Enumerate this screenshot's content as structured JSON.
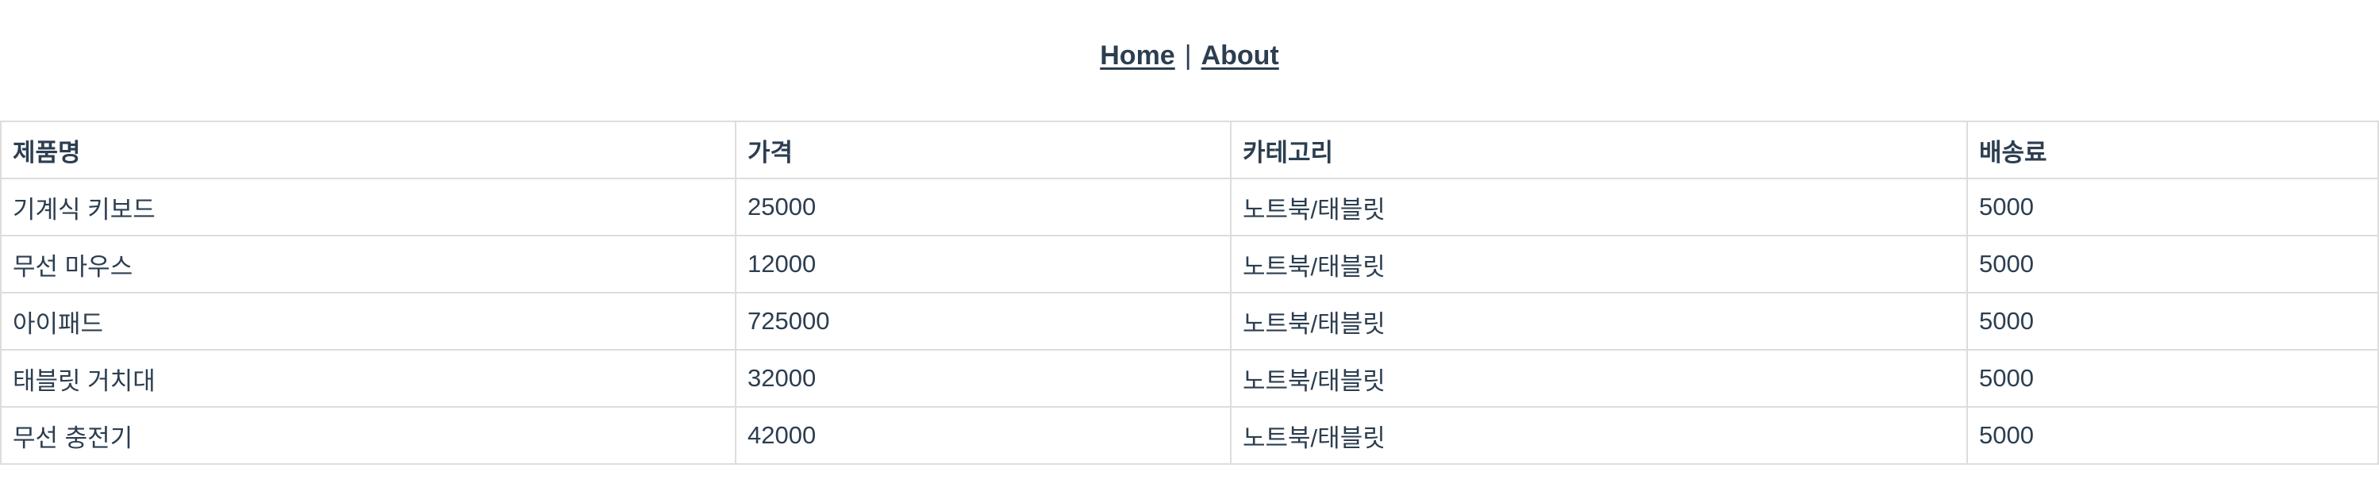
{
  "nav": {
    "home_label": "Home",
    "separator": "|",
    "about_label": "About"
  },
  "table": {
    "headers": [
      "제품명",
      "가격",
      "카테고리",
      "배송료"
    ],
    "rows": [
      [
        "기계식 키보드",
        "25000",
        "노트북/태블릿",
        "5000"
      ],
      [
        "무선 마우스",
        "12000",
        "노트북/태블릿",
        "5000"
      ],
      [
        "아이패드",
        "725000",
        "노트북/태블릿",
        "5000"
      ],
      [
        "태블릿 거치대",
        "32000",
        "노트북/태블릿",
        "5000"
      ],
      [
        "무선 충전기",
        "42000",
        "노트북/태블릿",
        "5000"
      ]
    ]
  }
}
